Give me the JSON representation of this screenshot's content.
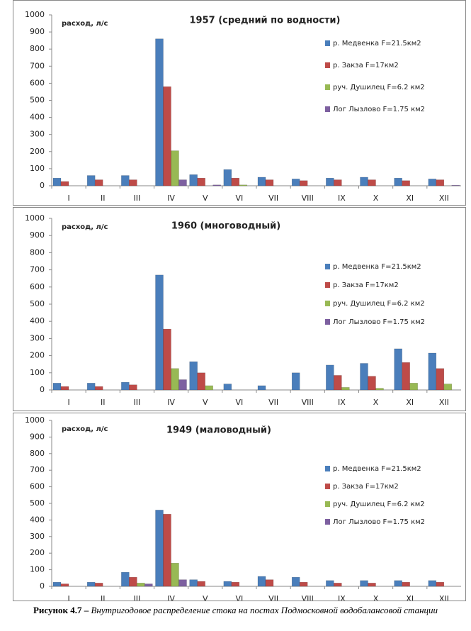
{
  "chart_data": [
    {
      "type": "bar",
      "title": "1957 (средний по водности)",
      "ylabel": "расход, л/с",
      "categories": [
        "I",
        "II",
        "III",
        "IV",
        "V",
        "VI",
        "VII",
        "VIII",
        "IX",
        "X",
        "XI",
        "XII"
      ],
      "ylim": [
        0,
        1000
      ],
      "yticks": [
        0,
        100,
        200,
        300,
        400,
        500,
        600,
        700,
        800,
        900,
        1000
      ],
      "grid": false,
      "series": [
        {
          "name": "р. Медвенка  F=21.5км2",
          "color": "#4a7ebb",
          "values": [
            45,
            60,
            60,
            860,
            65,
            95,
            50,
            40,
            45,
            50,
            45,
            40
          ]
        },
        {
          "name": "р. Закза  F=17км2",
          "color": "#be4b48",
          "values": [
            25,
            35,
            35,
            580,
            45,
            45,
            35,
            30,
            35,
            35,
            30,
            35
          ]
        },
        {
          "name": "руч. Душилец  F=6.2  км2",
          "color": "#98b954",
          "values": [
            0,
            0,
            0,
            205,
            0,
            5,
            0,
            0,
            0,
            0,
            0,
            0
          ]
        },
        {
          "name": "Лог Лызлово  F=1.75  км2",
          "color": "#7d60a0",
          "values": [
            0,
            0,
            0,
            35,
            5,
            0,
            0,
            0,
            0,
            0,
            0,
            3
          ]
        }
      ]
    },
    {
      "type": "bar",
      "title": "1960 (многоводный)",
      "ylabel": "расход, л/с",
      "categories": [
        "I",
        "II",
        "III",
        "IV",
        "V",
        "VI",
        "VII",
        "VIII",
        "IX",
        "X",
        "XI",
        "XII"
      ],
      "ylim": [
        0,
        1000
      ],
      "yticks": [
        0,
        100,
        200,
        300,
        400,
        500,
        600,
        700,
        800,
        900,
        1000
      ],
      "grid": false,
      "series": [
        {
          "name": "р. Медвенка  F=21.5км2",
          "color": "#4a7ebb",
          "values": [
            40,
            40,
            45,
            670,
            165,
            35,
            25,
            100,
            145,
            155,
            240,
            215
          ]
        },
        {
          "name": "р. Закза  F=17км2",
          "color": "#be4b48",
          "values": [
            20,
            20,
            30,
            355,
            100,
            0,
            0,
            0,
            85,
            80,
            160,
            125
          ]
        },
        {
          "name": "руч. Душилец  F=6.2  км2",
          "color": "#98b954",
          "values": [
            0,
            0,
            0,
            125,
            25,
            0,
            0,
            0,
            15,
            10,
            40,
            35
          ]
        },
        {
          "name": "Лог Лызлово  F=1.75  км2",
          "color": "#7d60a0",
          "values": [
            0,
            0,
            0,
            60,
            0,
            0,
            0,
            0,
            0,
            0,
            0,
            0
          ]
        }
      ]
    },
    {
      "type": "bar",
      "title": "1949 (маловодный)",
      "ylabel": "расход, л/с",
      "categories": [
        "I",
        "II",
        "III",
        "IV",
        "V",
        "VI",
        "VII",
        "VIII",
        "IX",
        "X",
        "XI",
        "XII"
      ],
      "ylim": [
        0,
        1000
      ],
      "yticks": [
        0,
        100,
        200,
        300,
        400,
        500,
        600,
        700,
        800,
        900,
        1000
      ],
      "grid": false,
      "series": [
        {
          "name": "р. Медвенка  F=21.5км2",
          "color": "#4a7ebb",
          "values": [
            25,
            25,
            85,
            460,
            40,
            30,
            60,
            55,
            35,
            35,
            35,
            35
          ]
        },
        {
          "name": "р. Закза  F=17км2",
          "color": "#be4b48",
          "values": [
            15,
            20,
            55,
            435,
            30,
            25,
            40,
            25,
            20,
            20,
            25,
            25
          ]
        },
        {
          "name": "руч. Душилец  F=6.2  км2",
          "color": "#98b954",
          "values": [
            0,
            0,
            20,
            140,
            0,
            0,
            0,
            0,
            0,
            0,
            0,
            0
          ]
        },
        {
          "name": "Лог Лызлово  F=1.75  км2",
          "color": "#7d60a0",
          "values": [
            0,
            0,
            15,
            40,
            0,
            0,
            0,
            0,
            0,
            0,
            0,
            0
          ]
        }
      ]
    }
  ],
  "caption": {
    "label": "Рисунок 4.7 –",
    "text": "Внутригодовое распределение стока на постах Подмосковной водобалансовой станции"
  }
}
